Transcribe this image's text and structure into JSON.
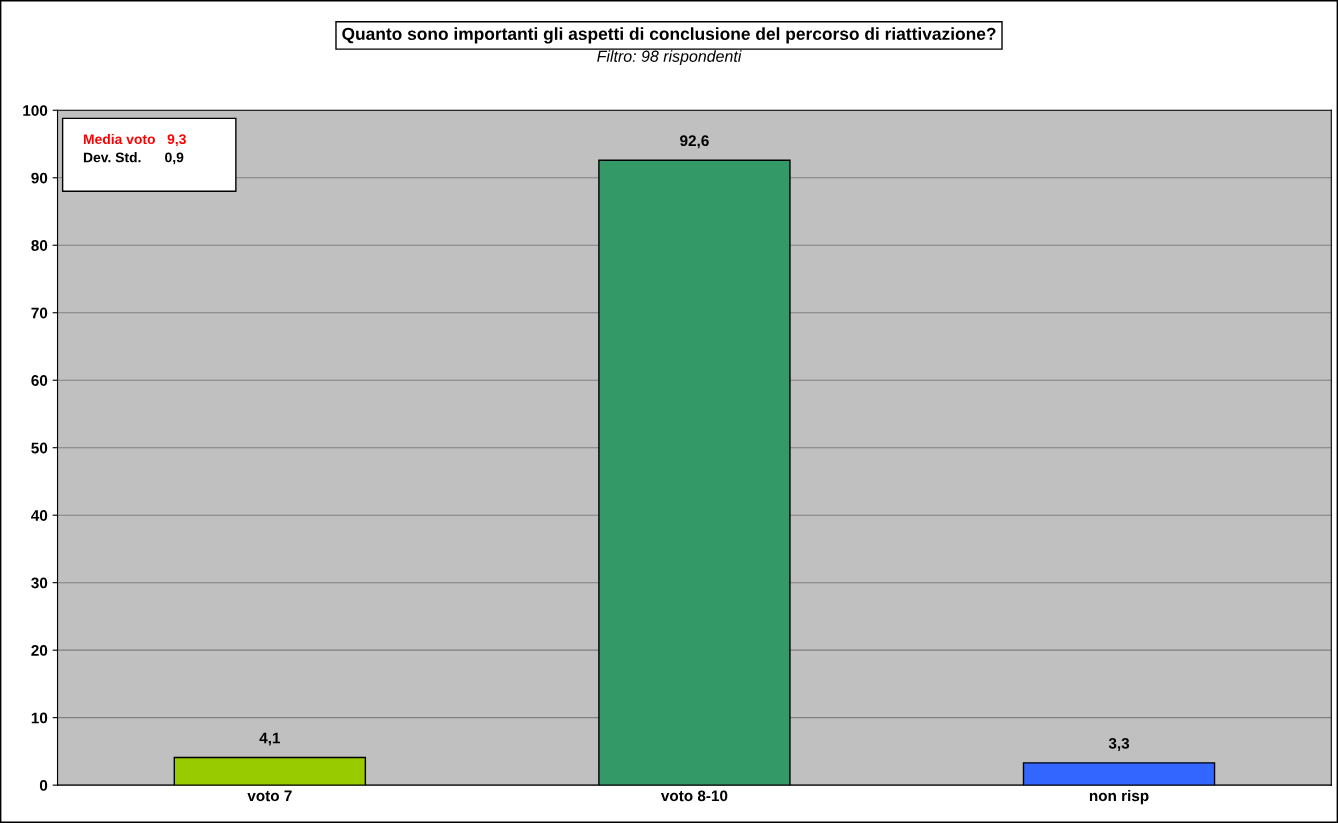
{
  "chart_data": {
    "type": "bar",
    "title": "Quanto sono importanti gli aspetti di conclusione del percorso di riattivazione?",
    "subtitle": "Filtro: 98 rispondenti",
    "categories": [
      "voto 7",
      "voto 8-10",
      "non risp"
    ],
    "values": [
      4.1,
      92.6,
      3.3
    ],
    "colors": [
      "#99cc00",
      "#339966",
      "#3366ff"
    ],
    "value_labels": [
      "4,1",
      "92,6",
      "3,3"
    ],
    "ylim": [
      0,
      100
    ],
    "yticks": [
      0,
      10,
      20,
      30,
      40,
      50,
      60,
      70,
      80,
      90,
      100
    ],
    "grid": "y",
    "legend": false,
    "annotations": [
      "Media voto   9,3",
      "Dev. Std.      0,9"
    ]
  }
}
